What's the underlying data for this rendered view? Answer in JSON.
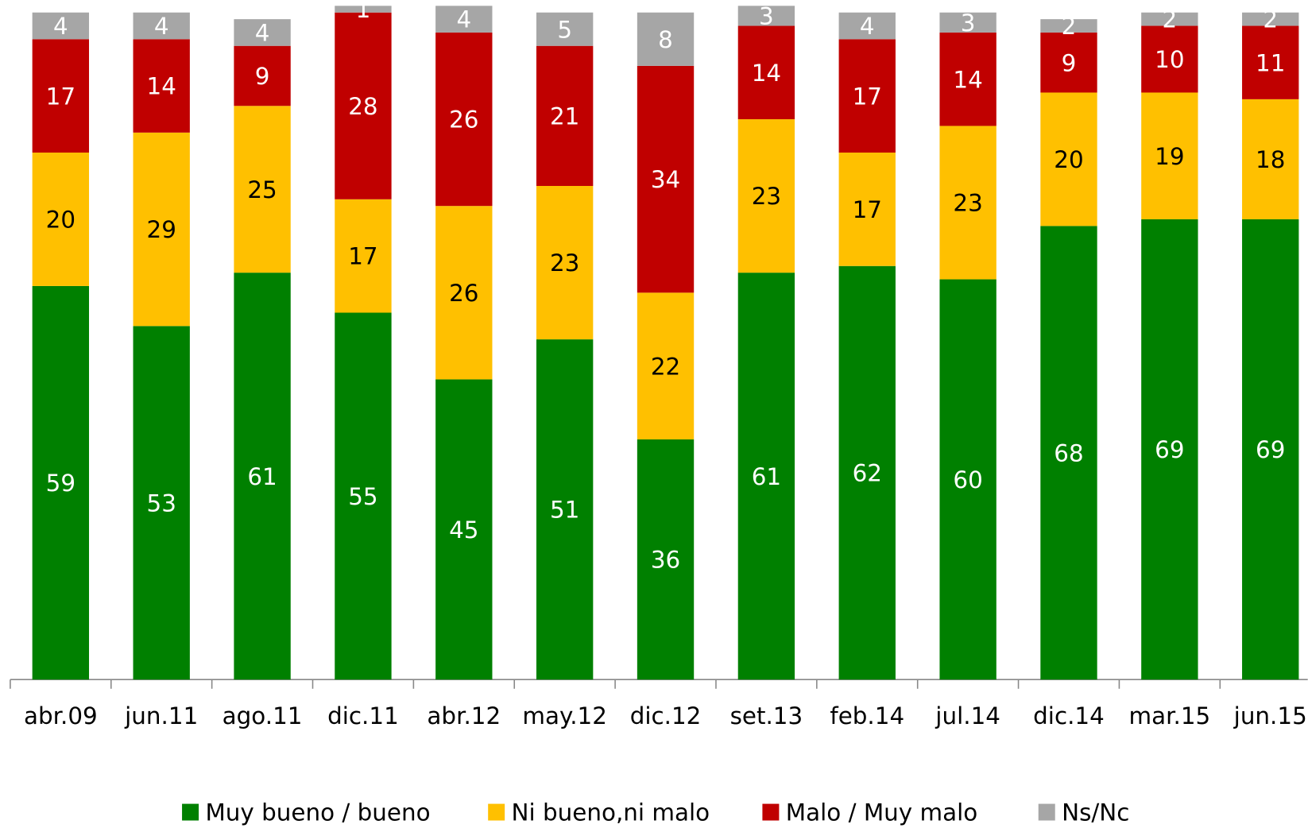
{
  "chart_data": {
    "type": "stacked_bar",
    "categories": [
      "abr.09",
      "jun.11",
      "ago.11",
      "dic.11",
      "abr.12",
      "may.12",
      "dic.12",
      "set.13",
      "feb.14",
      "jul.14",
      "dic.14",
      "mar.15",
      "jun.15"
    ],
    "series": [
      {
        "name": "Muy bueno / bueno",
        "color": "#008000",
        "label_color": "#ffffff",
        "values": [
          59,
          53,
          61,
          55,
          45,
          51,
          36,
          61,
          62,
          60,
          68,
          69,
          69
        ]
      },
      {
        "name": "Ni bueno,ni malo",
        "color": "#ffc000",
        "label_color": "#000000",
        "values": [
          20,
          29,
          25,
          17,
          26,
          23,
          22,
          23,
          17,
          23,
          20,
          19,
          18
        ]
      },
      {
        "name": "Malo / Muy malo",
        "color": "#c00000",
        "label_color": "#ffffff",
        "values": [
          17,
          14,
          9,
          28,
          26,
          21,
          34,
          14,
          17,
          14,
          9,
          10,
          11
        ]
      },
      {
        "name": "Ns/Nc",
        "color": "#a6a6a6",
        "label_color": "#ffffff",
        "values": [
          4,
          4,
          4,
          1,
          4,
          5,
          8,
          3,
          4,
          3,
          2,
          2,
          2
        ]
      }
    ],
    "ylim": [
      0,
      100
    ],
    "legend": "bottom"
  }
}
